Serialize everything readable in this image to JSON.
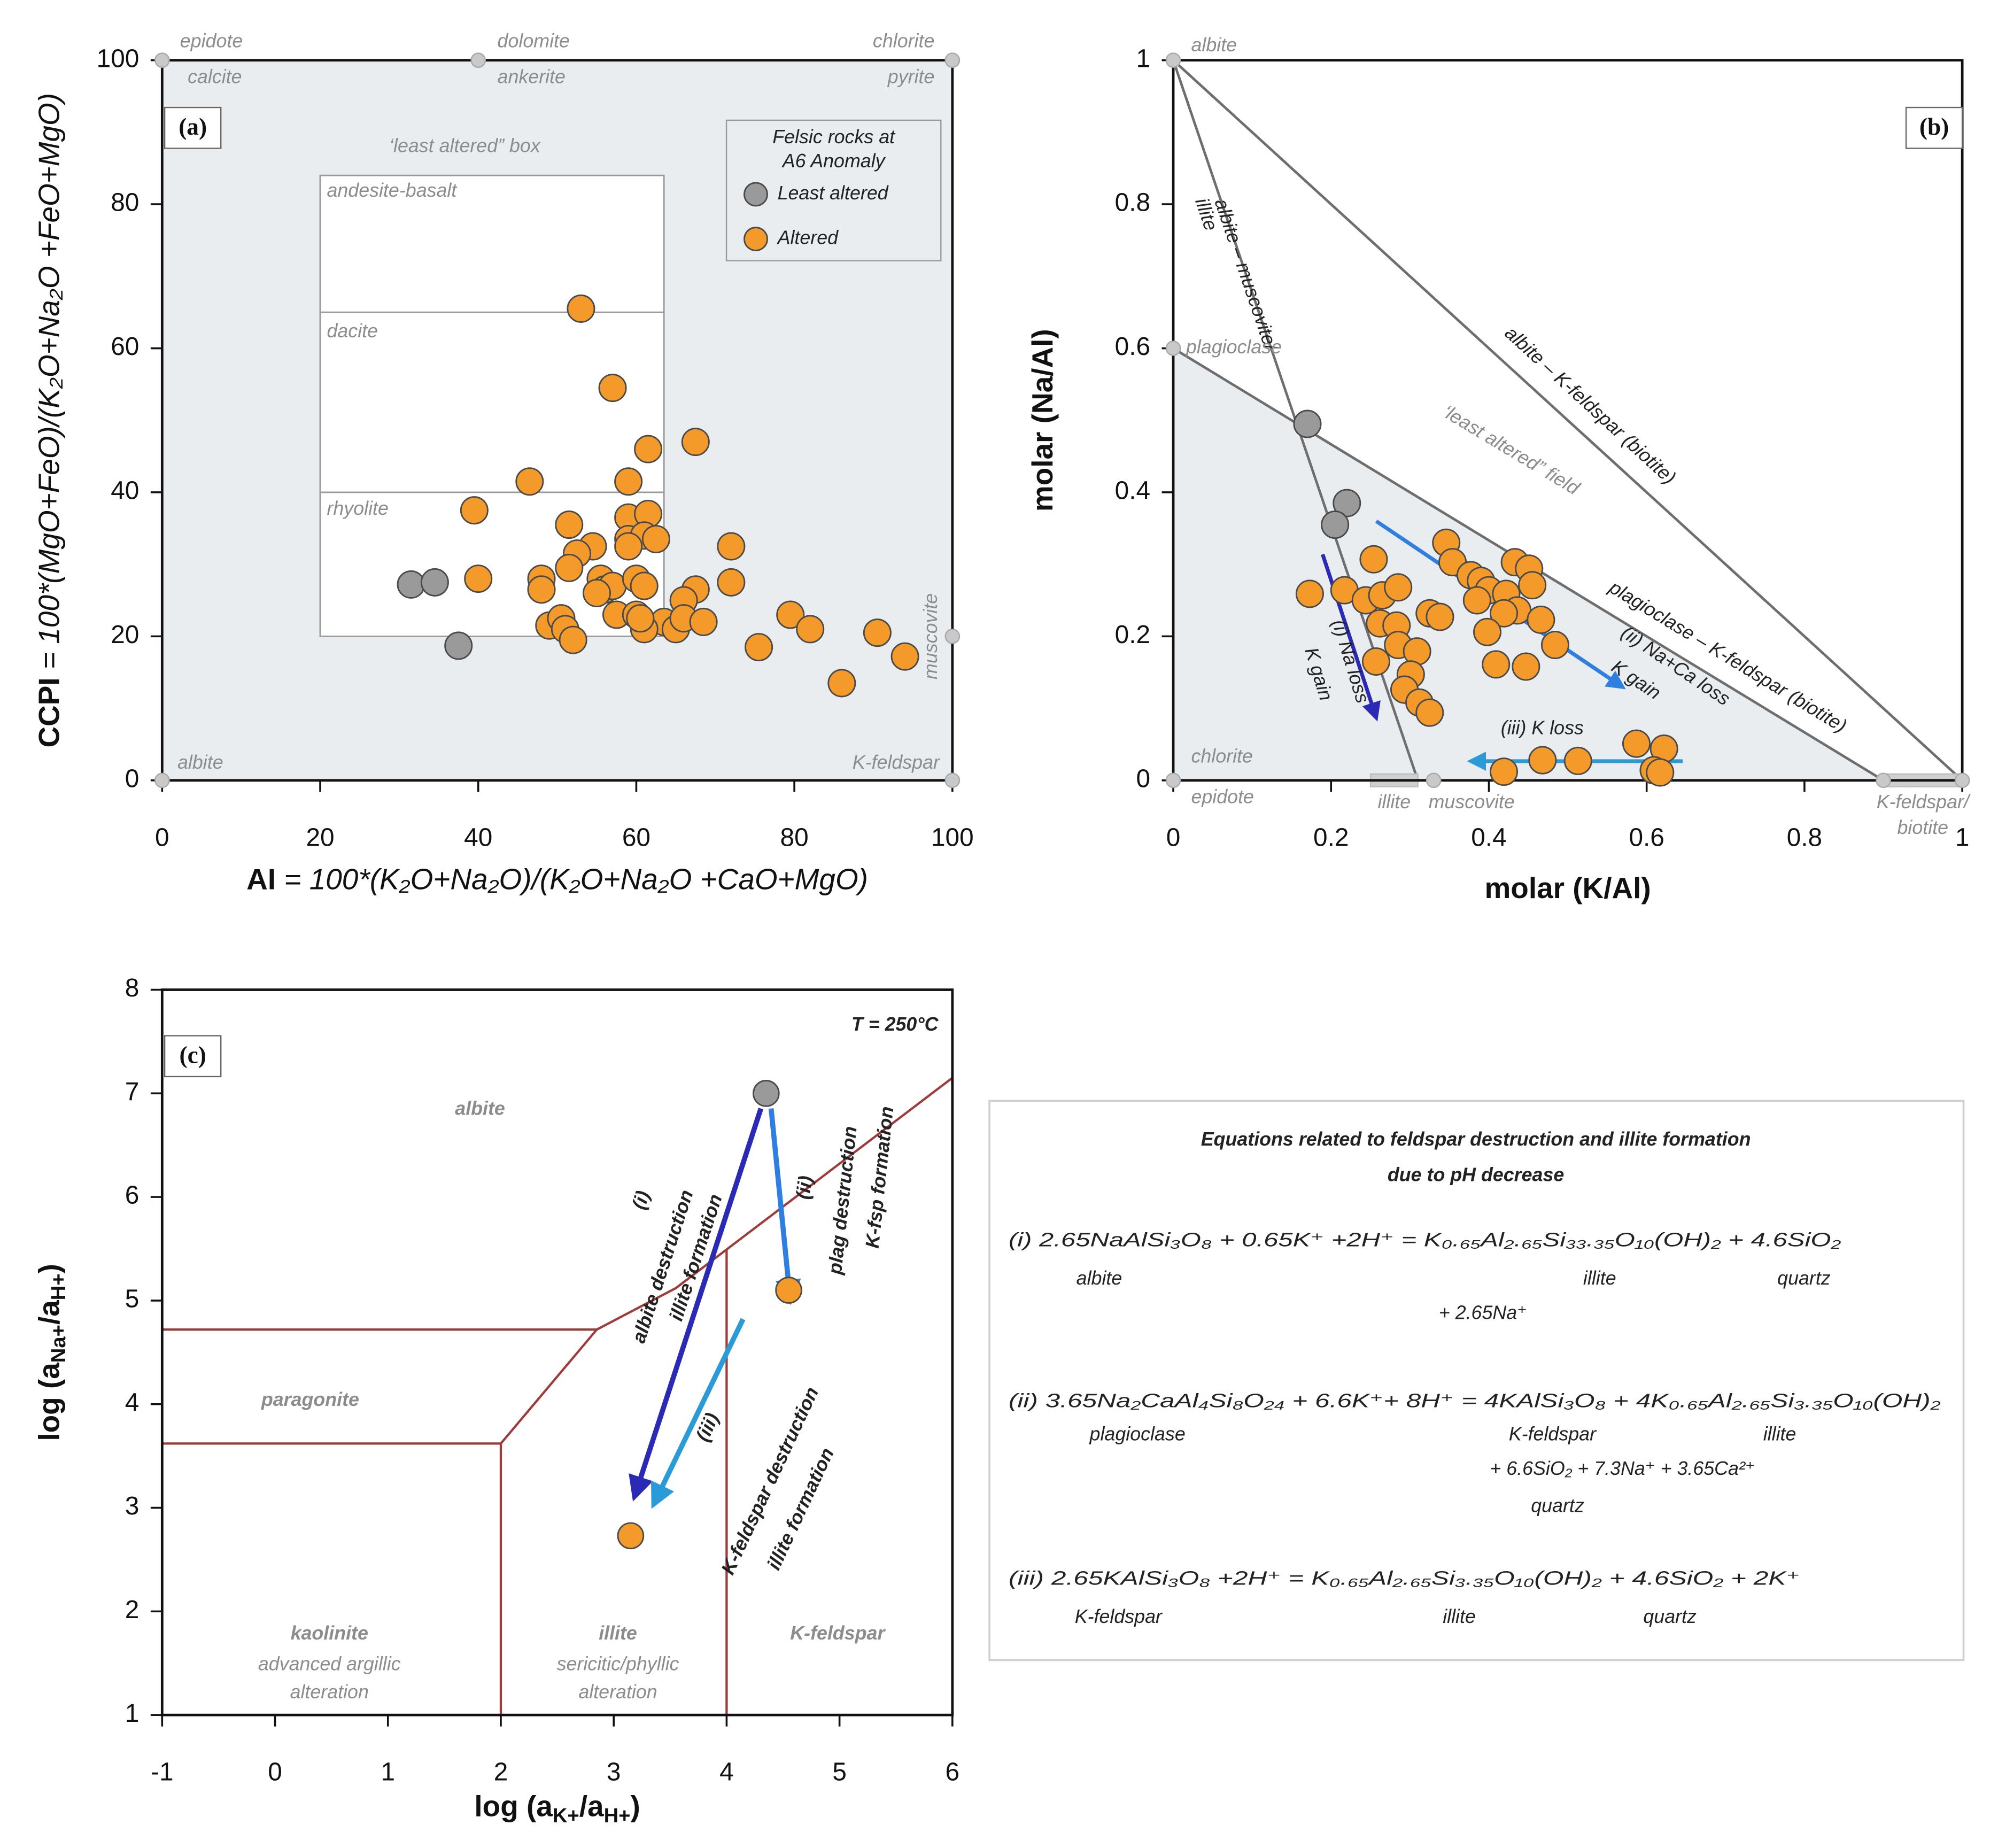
{
  "chart_data": [
    {
      "type": "scatter",
      "panel_label": "(a)",
      "xlabel": [
        "AI",
        " = 100*(K₂O+Na₂O)/(K₂O+Na₂O +CaO+MgO)"
      ],
      "ylabel": [
        "CCPI",
        " = 100*(MgO+FeO)/(K₂O+Na₂O +FeO+MgO)"
      ],
      "xlim": [
        0,
        100
      ],
      "ylim": [
        0,
        100
      ],
      "xticks": [
        0,
        20,
        40,
        60,
        80,
        100
      ],
      "yticks": [
        0,
        20,
        40,
        60,
        80,
        100
      ],
      "legend_title": [
        "Felsic rocks at",
        "A6 Anomaly"
      ],
      "series": [
        {
          "name": "Least altered",
          "color": "#9a9a9a",
          "x": [
            31.5,
            34.5,
            37.5
          ],
          "values": [
            27.2,
            27.5,
            18.7
          ]
        },
        {
          "name": "Altered",
          "color": "#f39a2b",
          "x": [
            53,
            57,
            67.5,
            61.5,
            46.5,
            59,
            39.5,
            51.5,
            54.5,
            59,
            61.5,
            59,
            61,
            62.5,
            59,
            52.5,
            51.5,
            55.5,
            56,
            57,
            55,
            60,
            61,
            72,
            40,
            48,
            48,
            72,
            67.5,
            66,
            57.5,
            60,
            63.5,
            65,
            66,
            68.5,
            49,
            50.5,
            51,
            52,
            61,
            75.5,
            79.5,
            82,
            86,
            90.5,
            94,
            60.5
          ],
          "values": [
            65.5,
            54.5,
            47,
            46,
            41.5,
            41.5,
            37.5,
            35.5,
            32.5,
            36.5,
            37,
            33.5,
            34,
            33.5,
            32.5,
            31.5,
            29.5,
            28,
            26.5,
            27,
            26,
            28,
            27,
            32.5,
            28,
            28,
            26.5,
            27.5,
            26.5,
            25,
            23,
            23,
            22,
            21,
            22.5,
            22,
            21.5,
            22.5,
            21,
            19.5,
            21,
            18.5,
            23,
            21,
            13.5,
            20.5,
            17.2,
            22.5
          ]
        }
      ],
      "reference_points": [
        {
          "x": 0,
          "y": 100,
          "labels": [
            "epidote",
            "calcite"
          ]
        },
        {
          "x": 40,
          "y": 100,
          "labels": [
            "dolomite",
            "ankerite"
          ]
        },
        {
          "x": 100,
          "y": 100,
          "labels": [
            "chlorite",
            "pyrite"
          ]
        },
        {
          "x": 0,
          "y": 0,
          "labels": [
            "albite"
          ]
        },
        {
          "x": 100,
          "y": 0,
          "labels": [
            "K-feldspar"
          ]
        },
        {
          "x": 100,
          "y": 20,
          "labels": [
            "muscovite"
          ]
        }
      ],
      "box_title": "‘least altered” box",
      "box_regions": [
        "andesite-basalt",
        "dacite",
        "rhyolite"
      ]
    },
    {
      "type": "scatter",
      "panel_label": "(b)",
      "xlabel": [
        "molar (K/Al)"
      ],
      "ylabel": [
        "molar (Na/Al)"
      ],
      "xlim": [
        0,
        1
      ],
      "ylim": [
        0,
        1
      ],
      "xticks": [
        0,
        0.2,
        0.4,
        0.6,
        0.8,
        1
      ],
      "yticks": [
        0,
        0.2,
        0.4,
        0.6,
        0.8,
        1
      ],
      "series": [
        {
          "color": "#9a9a9a",
          "x": [
            0.17,
            0.22,
            0.205
          ],
          "values": [
            0.495,
            0.385,
            0.355
          ]
        },
        {
          "color": "#f39a2b",
          "x": [
            0.173,
            0.217,
            0.254,
            0.244,
            0.265,
            0.285,
            0.262,
            0.283,
            0.257,
            0.285,
            0.309,
            0.301,
            0.293,
            0.312,
            0.325,
            0.325,
            0.338,
            0.346,
            0.354,
            0.377,
            0.39,
            0.4,
            0.422,
            0.385,
            0.433,
            0.451,
            0.455,
            0.436,
            0.466,
            0.419,
            0.398,
            0.409,
            0.447,
            0.484,
            0.468,
            0.419,
            0.513,
            0.587,
            0.622,
            0.609,
            0.617
          ],
          "values": [
            0.259,
            0.264,
            0.307,
            0.25,
            0.257,
            0.268,
            0.218,
            0.215,
            0.165,
            0.188,
            0.179,
            0.147,
            0.126,
            0.108,
            0.094,
            0.232,
            0.227,
            0.33,
            0.303,
            0.285,
            0.277,
            0.264,
            0.259,
            0.25,
            0.303,
            0.294,
            0.271,
            0.236,
            0.223,
            0.232,
            0.206,
            0.161,
            0.158,
            0.188,
            0.028,
            0.012,
            0.027,
            0.051,
            0.044,
            0.014,
            0.011
          ]
        }
      ],
      "reference_points": [
        {
          "x": 0,
          "y": 1,
          "labels": [
            "albite"
          ]
        },
        {
          "x": 0,
          "y": 0.6,
          "labels": [
            "plagioclase"
          ]
        },
        {
          "x": 0,
          "y": 0,
          "labels": [
            "chlorite",
            "epidote"
          ]
        },
        {
          "x": 0.33,
          "y": 0,
          "labels": [
            "muscovite"
          ]
        },
        {
          "x": 0.9,
          "y": 0,
          "labels": []
        },
        {
          "x": 1,
          "y": 0,
          "labels": []
        }
      ],
      "ranges": [
        {
          "x": [
            0.25,
            0.31
          ],
          "labels": [
            "illite"
          ]
        },
        {
          "x": [
            0.9,
            1
          ],
          "labels": [
            "K-feldspar/",
            "biotite"
          ]
        }
      ],
      "line_labels": [
        [
          "albite – muscovite/",
          "illite"
        ],
        [
          "albite – K-feldspar (biotite)"
        ],
        [
          "plagioclase – K-feldspar (biotite)"
        ]
      ],
      "field_label": "‘least altered” field",
      "arrow_labels": [
        [
          "(i) Na loss",
          "K gain"
        ],
        [
          "(ii) Na+Ca loss",
          "K gain"
        ],
        [
          "(iii) K loss"
        ]
      ]
    },
    {
      "type": "scatter",
      "panel_label": "(c)",
      "xlabel": [
        "log (a",
        "K+",
        "/a",
        "H+",
        ")"
      ],
      "ylabel": [
        "log (a",
        "Na+",
        "/a",
        "H+",
        ")"
      ],
      "xlim": [
        -1,
        6
      ],
      "ylim": [
        1,
        8
      ],
      "xticks": [
        -1,
        0,
        1,
        2,
        3,
        4,
        5,
        6
      ],
      "yticks": [
        1,
        2,
        3,
        4,
        5,
        6,
        7,
        8
      ],
      "temperature": "T = 250°C",
      "series": [
        {
          "color": "#9a9a9a",
          "x": [
            4.35
          ],
          "values": [
            7.0
          ]
        },
        {
          "color": "#f39a2b",
          "x": [
            4.55,
            3.15
          ],
          "values": [
            5.1,
            2.73
          ]
        }
      ],
      "fields": [
        {
          "name": "albite",
          "notes": []
        },
        {
          "name": "paragonite",
          "notes": []
        },
        {
          "name": "kaolinite",
          "notes": [
            "advanced argillic",
            "alteration"
          ]
        },
        {
          "name": "illite",
          "notes": [
            "sericitic/phyllic",
            "alteration"
          ]
        },
        {
          "name": "K-feldspar",
          "notes": []
        }
      ],
      "arrow_labels": [
        [
          "(i)",
          "albite destruction",
          "illite formation"
        ],
        [
          "(ii)",
          "plag destruction",
          "K-fsp formation"
        ],
        [
          "(iii)",
          "K-feldspar destruction",
          "illite formation"
        ]
      ]
    }
  ],
  "equations_panel": {
    "title": [
      "Equations related to feldspar destruction and illite formation",
      "due to pH decrease"
    ],
    "equations": [
      {
        "color": "#2a2ab4",
        "text": "(i) 2.65NaAlSi₃O₈ + 0.65K⁺ +2H⁺ = K₀.₆₅Al₂.₆₅Si₃₃.₃₅O₁₀(OH)₂ + 4.6SiO₂",
        "labels": [
          "albite",
          "illite",
          "quartz"
        ],
        "continuation": "+ 2.65Na⁺",
        "continuation_labels": []
      },
      {
        "color": "#2b6fd0",
        "text": "(ii) 3.65Na₂CaAl₄Si₈O₂₄ + 6.6K⁺+ 8H⁺  = 4KAlSi₃O₈ + 4K₀.₆₅Al₂.₆₅Si₃.₃₅O₁₀(OH)₂",
        "labels": [
          "plagioclase",
          "K-feldspar",
          "illite"
        ],
        "continuation": "+ 6.6SiO₂ + 7.3Na⁺ + 3.65Ca²⁺",
        "continuation_labels": [
          "quartz"
        ]
      },
      {
        "color": "#2b9bd8",
        "text": "(iii) 2.65KAlSi₃O₈ +2H⁺ = K₀.₆₅Al₂.₆₅Si₃.₃₅O₁₀(OH)₂ + 4.6SiO₂ + 2K⁺",
        "labels": [
          "K-feldspar",
          "illite",
          "quartz"
        ],
        "continuation": null,
        "continuation_labels": []
      }
    ]
  }
}
